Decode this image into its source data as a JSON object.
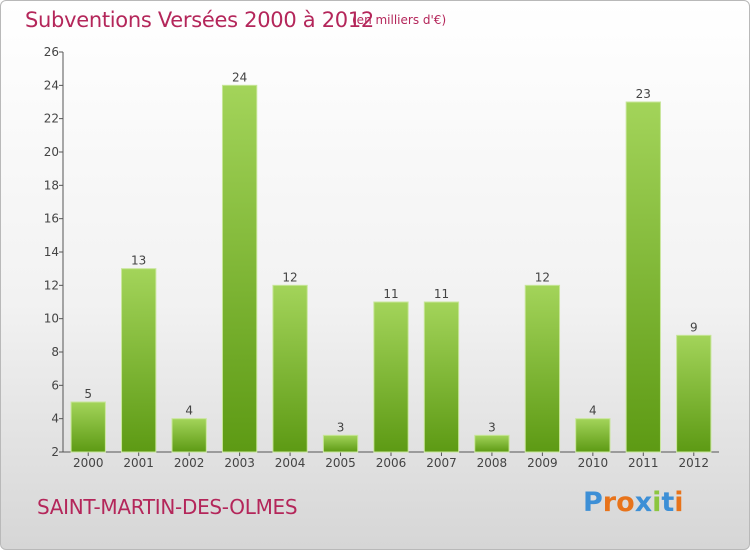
{
  "header": {
    "title": "Subventions Versées 2000 à 2012",
    "subtitle": "(en milliers d'€)"
  },
  "footer": {
    "commune": "SAINT-MARTIN-DES-OLMES",
    "logo": [
      "P",
      "r",
      "o",
      "x",
      "i",
      "t",
      "i"
    ]
  },
  "colors": {
    "title": "#b4265a",
    "bar_light": "#9fd052",
    "bar_dark": "#5d9a14",
    "logo_letters": [
      "#3d8fd6",
      "#e8731a",
      "#e8731a",
      "#3d8fd6",
      "#8cc63f",
      "#3d8fd6",
      "#e8731a"
    ]
  },
  "chart_data": {
    "type": "bar",
    "title": "Subventions Versées 2000 à 2012",
    "subtitle": "(en milliers d'€)",
    "categories": [
      "2000",
      "2001",
      "2002",
      "2003",
      "2004",
      "2005",
      "2006",
      "2007",
      "2008",
      "2009",
      "2010",
      "2011",
      "2012"
    ],
    "values": [
      5,
      13,
      4,
      24,
      12,
      3,
      11,
      11,
      3,
      12,
      4,
      23,
      9
    ],
    "data_labels": [
      "5",
      "13",
      "4",
      "24",
      "12",
      "3",
      "11",
      "11",
      "3",
      "12",
      "4",
      "23",
      "9"
    ],
    "ylim": [
      2,
      26
    ],
    "yticks": [
      2,
      4,
      6,
      8,
      10,
      12,
      14,
      16,
      18,
      20,
      22,
      24,
      26
    ],
    "grid": false,
    "legend": "none"
  }
}
